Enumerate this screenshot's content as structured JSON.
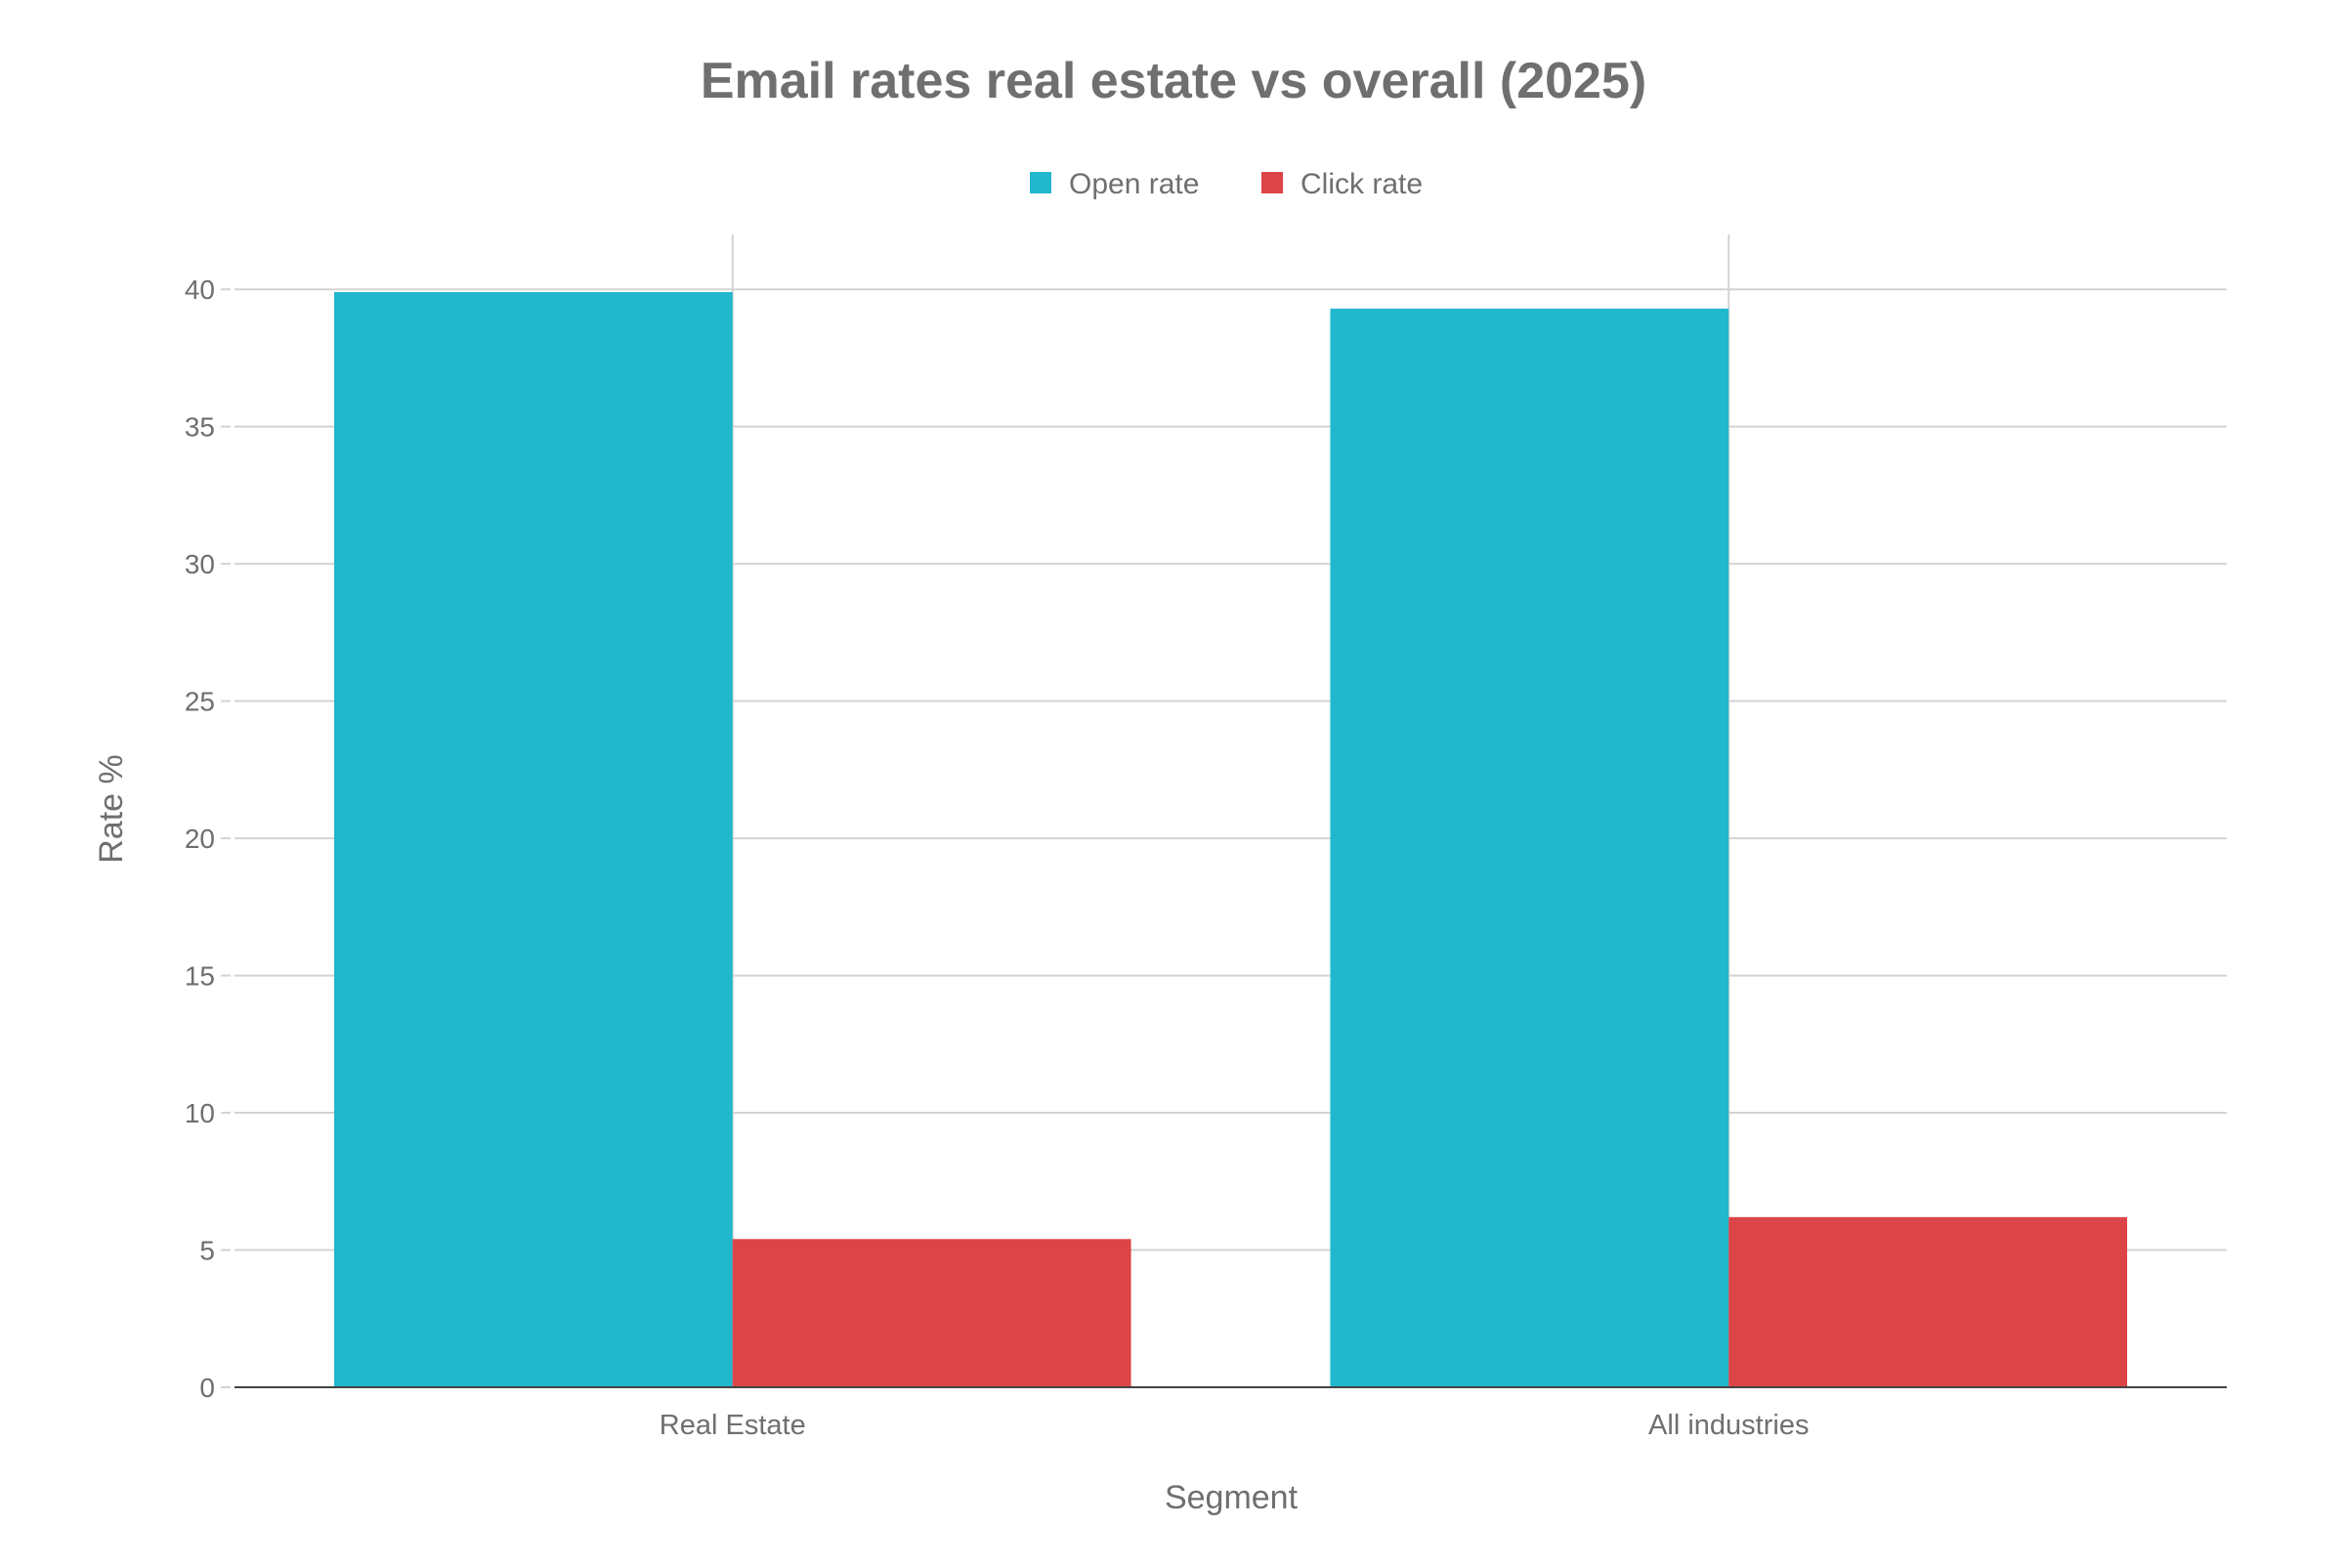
{
  "chart_data": {
    "type": "bar",
    "title": "Email rates real estate vs overall (2025)",
    "xlabel": "Segment",
    "ylabel": "Rate %",
    "categories": [
      "Real Estate",
      "All industries"
    ],
    "series": [
      {
        "name": "Open rate",
        "color": "#21B7CD",
        "values": [
          39.9,
          39.3
        ]
      },
      {
        "name": "Click rate",
        "color": "#DB4547",
        "values": [
          5.4,
          6.2
        ]
      }
    ],
    "ylim": [
      0,
      42
    ],
    "yticks": [
      0,
      5,
      10,
      15,
      20,
      25,
      30,
      35,
      40
    ],
    "grid": true,
    "legend": "top-center"
  }
}
